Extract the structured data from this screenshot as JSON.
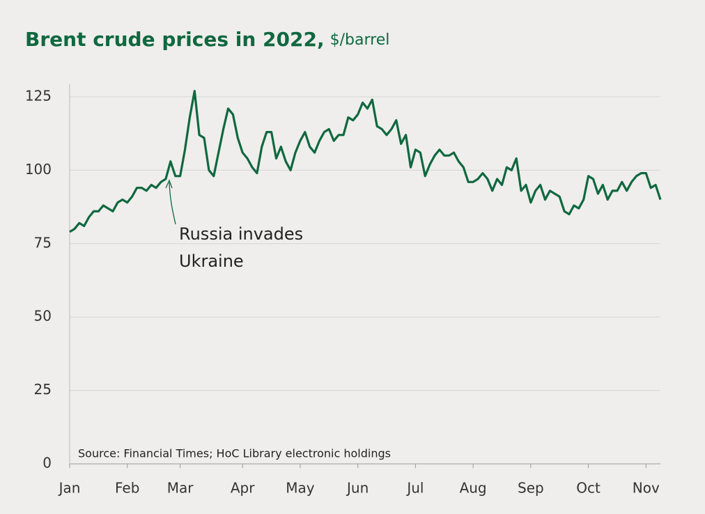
{
  "chart_data": {
    "type": "line",
    "title": "Brent crude prices in 2022,",
    "subtitle": "$/barrel",
    "source": "Source: Financial Times; HoC Library electronic holdings",
    "annotation": [
      "Russia invades",
      "Ukraine"
    ],
    "categories": [
      "Jan",
      null,
      null,
      null,
      null,
      null,
      null,
      null,
      null,
      null,
      null,
      null,
      "Feb",
      null,
      null,
      null,
      null,
      null,
      null,
      null,
      null,
      null,
      null,
      "Mar",
      null,
      null,
      null,
      null,
      null,
      null,
      null,
      null,
      null,
      null,
      null,
      null,
      "Apr",
      null,
      null,
      null,
      null,
      null,
      null,
      null,
      null,
      null,
      null,
      null,
      "May",
      null,
      null,
      null,
      null,
      null,
      null,
      null,
      null,
      null,
      null,
      null,
      "Jun",
      null,
      null,
      null,
      null,
      null,
      null,
      null,
      null,
      null,
      null,
      null,
      "Jul",
      null,
      null,
      null,
      null,
      null,
      null,
      null,
      null,
      null,
      null,
      null,
      "Aug",
      null,
      null,
      null,
      null,
      null,
      null,
      null,
      null,
      null,
      null,
      null,
      "Sep",
      null,
      null,
      null,
      null,
      null,
      null,
      null,
      null,
      null,
      null,
      null,
      "Oct",
      null,
      null,
      null,
      null,
      null,
      null,
      null,
      null,
      null,
      null,
      null,
      "Nov",
      null,
      null,
      null
    ],
    "series": [
      {
        "name": "Brent crude",
        "color": "#10683f",
        "values": [
          79,
          80,
          82,
          81,
          84,
          86,
          86,
          88,
          87,
          86,
          89,
          90,
          89,
          91,
          94,
          94,
          93,
          95,
          94,
          96,
          97,
          103,
          98,
          98,
          107,
          118,
          127,
          112,
          111,
          100,
          98,
          106,
          114,
          121,
          119,
          111,
          106,
          104,
          101,
          99,
          108,
          113,
          113,
          104,
          108,
          103,
          100,
          106,
          110,
          113,
          108,
          106,
          110,
          113,
          114,
          110,
          112,
          112,
          118,
          117,
          119,
          123,
          121,
          124,
          115,
          114,
          112,
          114,
          117,
          109,
          112,
          101,
          107,
          106,
          98,
          102,
          105,
          107,
          105,
          105,
          106,
          103,
          101,
          96,
          96,
          97,
          99,
          97,
          93,
          97,
          95,
          101,
          100,
          104,
          93,
          95,
          89,
          93,
          95,
          90,
          93,
          92,
          91,
          86,
          85,
          88,
          87,
          90,
          98,
          97,
          92,
          95,
          90,
          93,
          93,
          96,
          93,
          96,
          98,
          99,
          99,
          94,
          95,
          90
        ]
      }
    ],
    "ylim": [
      0,
      125
    ],
    "yticks": [
      0,
      25,
      50,
      75,
      100,
      125
    ],
    "grid": true
  }
}
